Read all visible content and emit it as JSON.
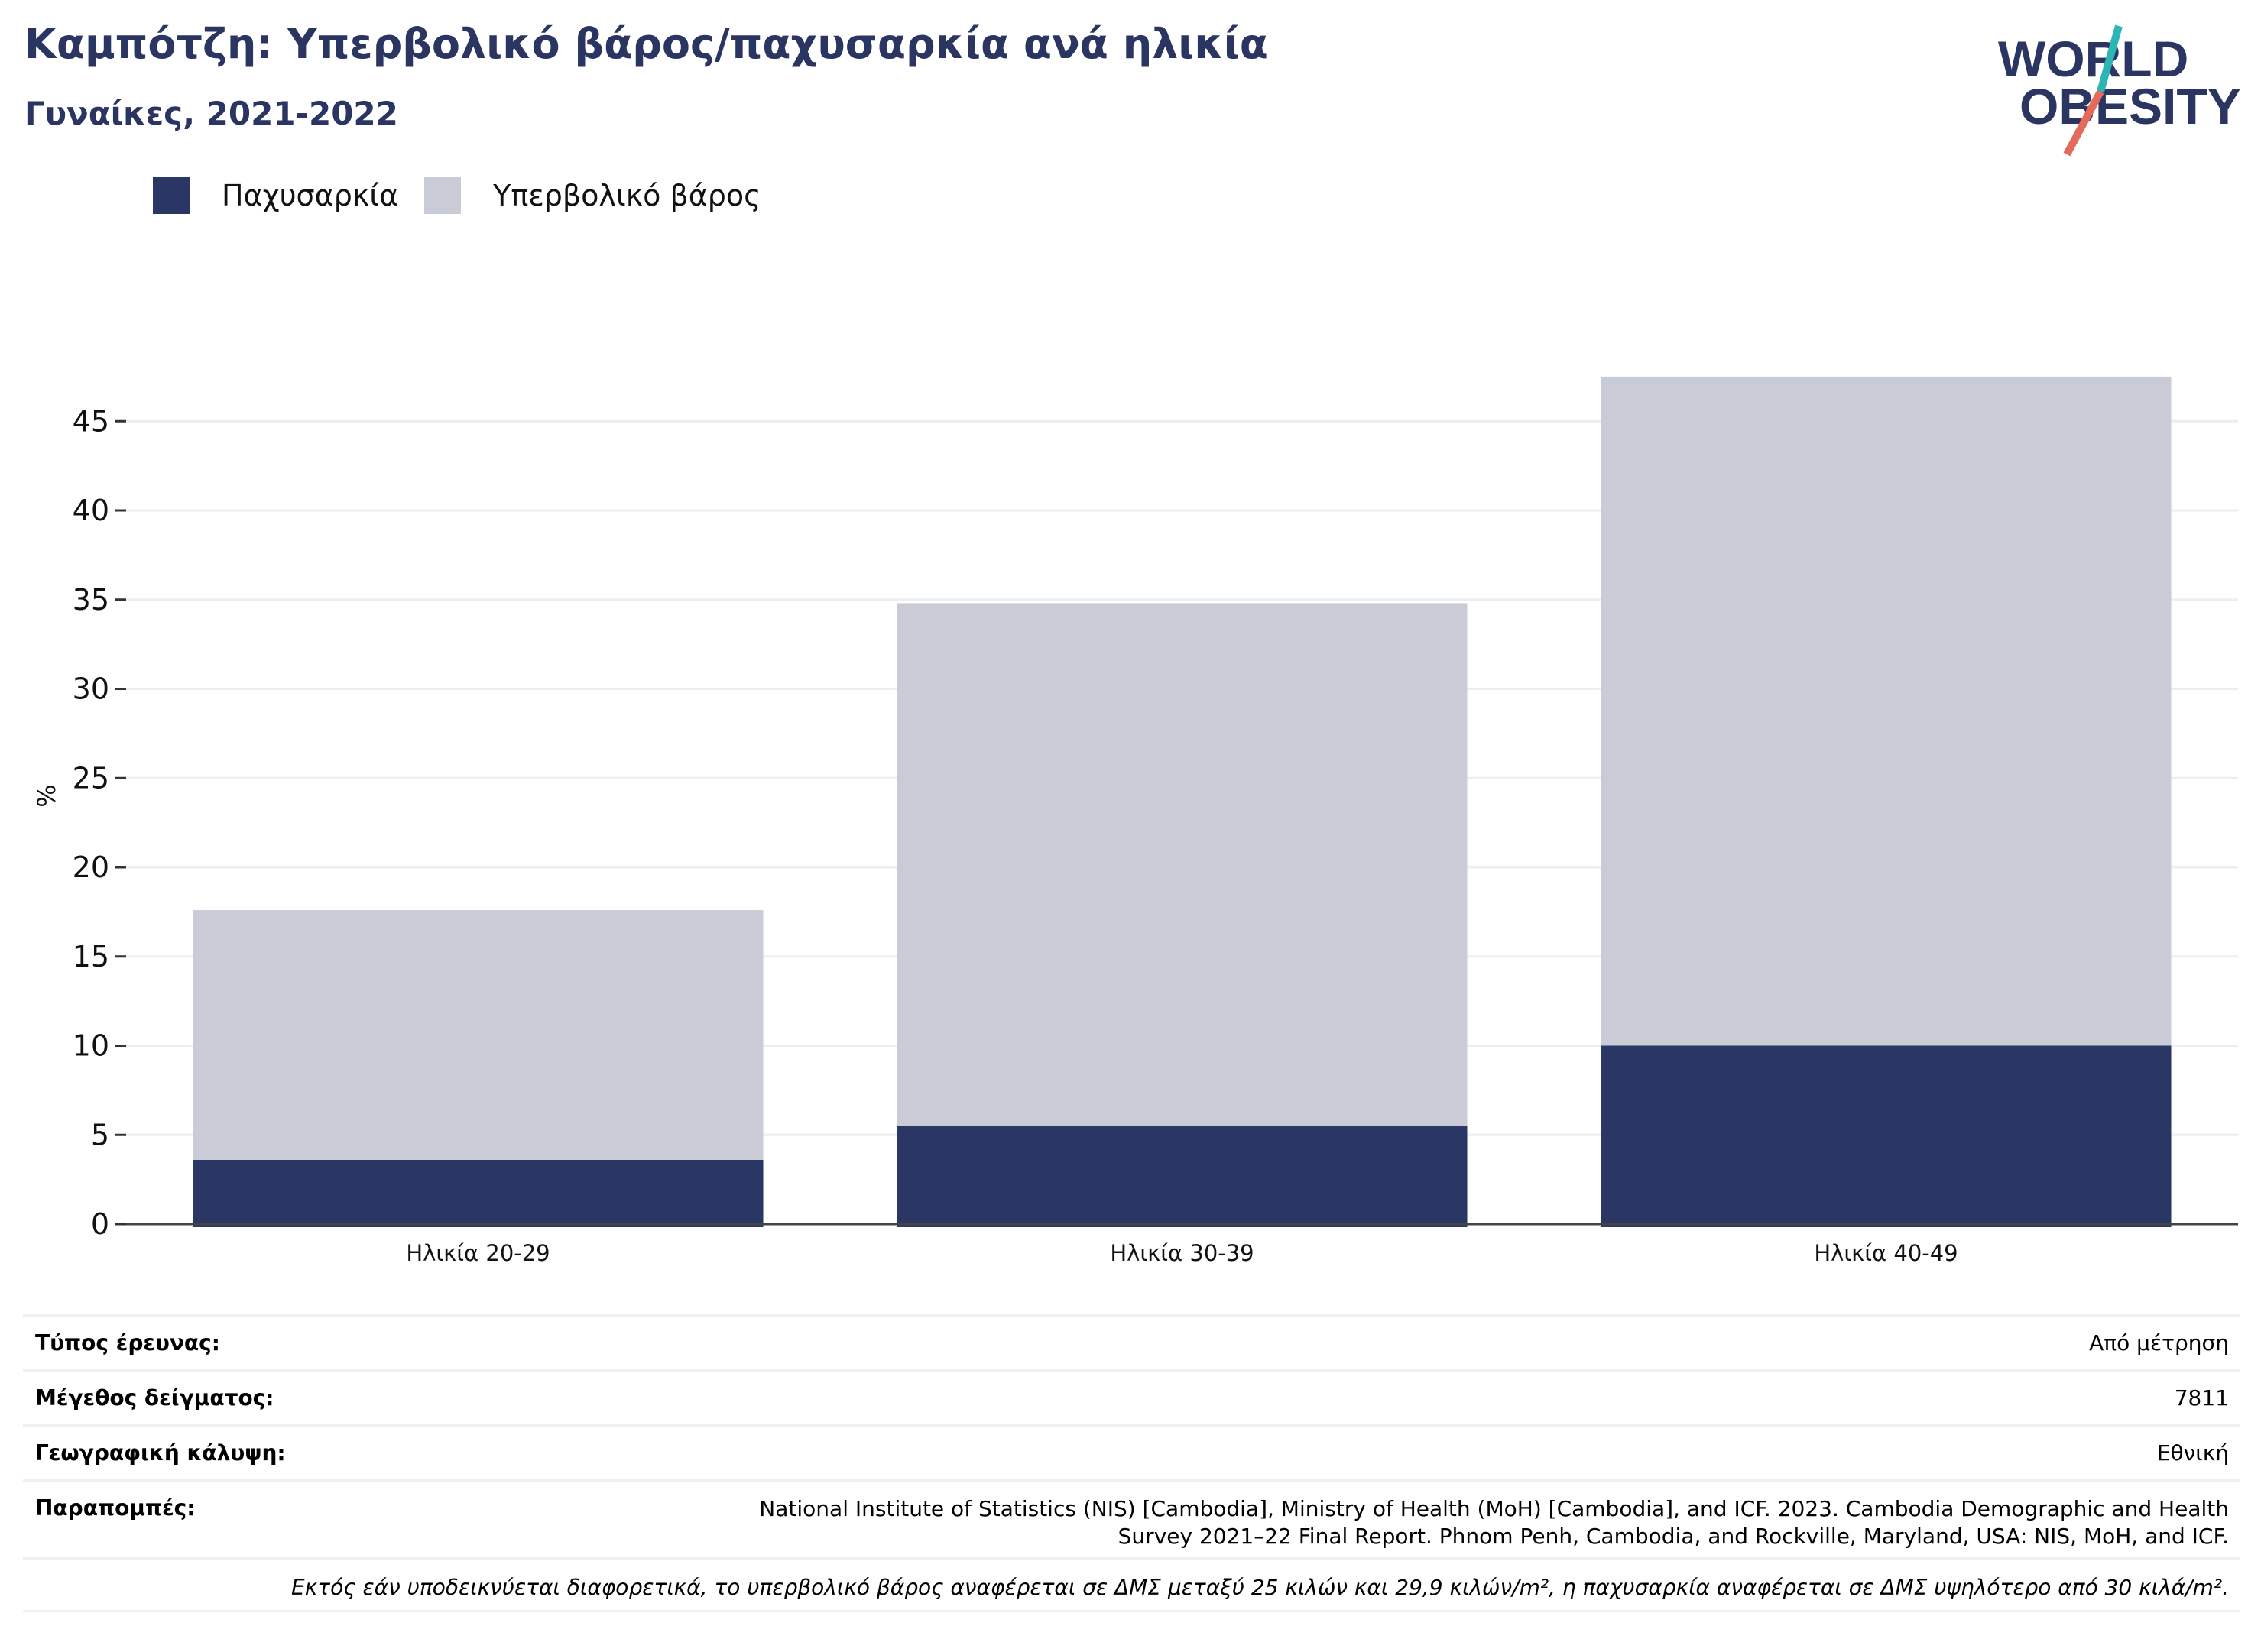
{
  "title": "Καμπότζη: Υπερβολικό βάρος/παχυσαρκία ανά ηλικία",
  "subtitle": "Γυναίκες, 2021-2022",
  "logo": {
    "line1": "WORLD",
    "line2": "OBESITY"
  },
  "colors": {
    "obesity": "#2a3764",
    "overweight": "#c9cbd7",
    "title": "#2a3562",
    "logo_teal": "#2bb5b5",
    "logo_coral": "#e46a5c"
  },
  "chart_data": {
    "type": "bar",
    "stacked": true,
    "categories": [
      "Ηλικία 20-29",
      "Ηλικία 30-39",
      "Ηλικία 40-49"
    ],
    "series": [
      {
        "name": "Παχυσαρκία",
        "values": [
          3.6,
          5.5,
          10.0
        ]
      },
      {
        "name": "Υπερβολικό βάρος",
        "values": [
          14.0,
          29.3,
          37.5
        ]
      }
    ],
    "ylabel": "%",
    "ylim": [
      0,
      48
    ],
    "yticks": [
      0,
      5,
      10,
      15,
      20,
      25,
      30,
      35,
      40,
      45
    ],
    "grid": true,
    "legend": "top-left"
  },
  "info": {
    "survey_type_label": "Τύπος έρευνας:",
    "survey_type_value": "Από μέτρηση",
    "sample_size_label": "Μέγεθος δείγματος:",
    "sample_size_value": "7811",
    "coverage_label": "Γεωγραφική κάλυψη:",
    "coverage_value": "Εθνική",
    "references_label": "Παραπομπές:",
    "references_line1": "National Institute of Statistics (NIS) [Cambodia], Ministry of Health (MoH) [Cambodia], and ICF. 2023. Cambodia Demographic and Health",
    "references_line2": "Survey 2021–22 Final Report. Phnom Penh, Cambodia, and Rockville, Maryland, USA: NIS, MoH, and ICF.",
    "note": "Εκτός εάν υποδεικνύεται διαφορετικά, το υπερβολικό βάρος αναφέρεται σε ΔΜΣ μεταξύ 25 κιλών και 29,9 κιλών/m², η παχυσαρκία αναφέρεται σε ΔΜΣ υψηλότερο από 30 κιλά/m²."
  }
}
